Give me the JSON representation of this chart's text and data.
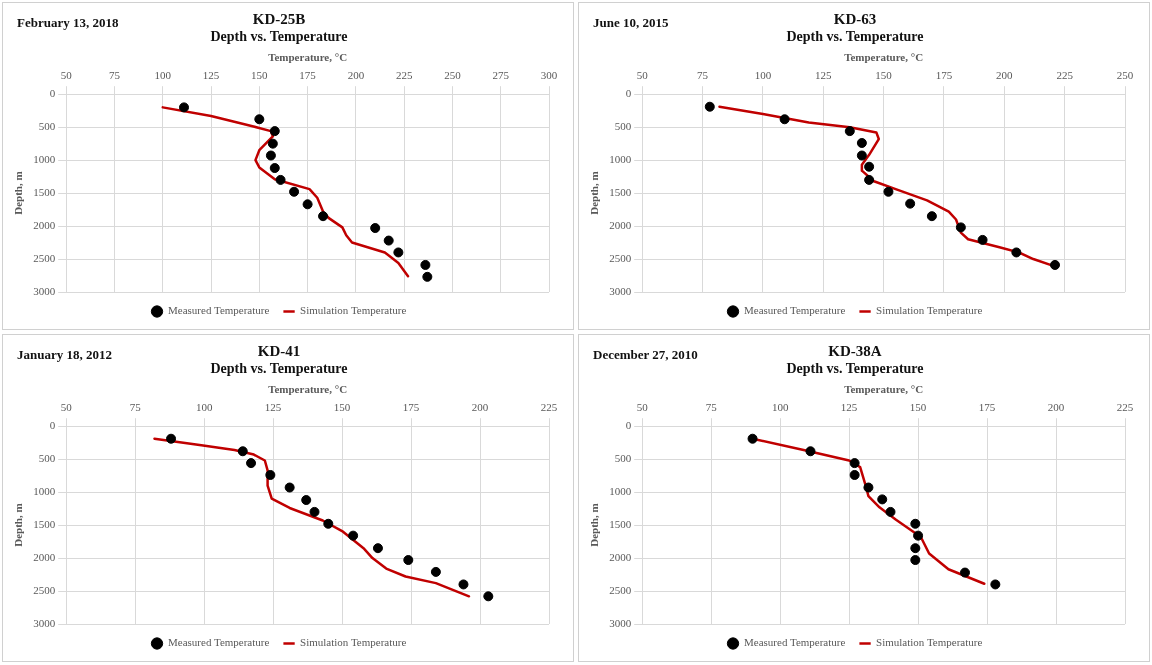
{
  "chart_data": [
    {
      "type": "scatter",
      "title": "KD-25B",
      "subtitle": "Depth vs. Temperature",
      "xlabel": "Temperature, °C",
      "ylabel": "Depth, m",
      "annotations": [
        "February 13, 2018"
      ],
      "xlim": [
        50,
        300
      ],
      "xticks": [
        50,
        75,
        100,
        125,
        150,
        175,
        200,
        225,
        250,
        275,
        300
      ],
      "ylim": [
        3000,
        0
      ],
      "yticks": [
        0,
        500,
        1000,
        1500,
        2000,
        2500,
        3000
      ],
      "grid": true,
      "legend": "bottom",
      "line_style": "solid",
      "series": [
        {
          "name": "Measured Temperature",
          "type": "scatter",
          "marker": "circle",
          "color": "#000000",
          "x": [
            111,
            150,
            158,
            157,
            156,
            158,
            161,
            168,
            175,
            183,
            210,
            217,
            222,
            236,
            237
          ],
          "values": [
            200,
            380,
            560,
            750,
            930,
            1120,
            1300,
            1480,
            1670,
            1850,
            2030,
            2220,
            2400,
            2590,
            2770
          ]
        },
        {
          "name": "Simulation Temperature",
          "type": "line",
          "marker": "none",
          "color": "#c00000",
          "x": [
            100,
            125,
            147,
            156,
            157,
            150,
            148,
            150,
            158,
            176,
            180,
            183,
            186,
            193,
            195,
            198,
            215,
            222,
            227
          ],
          "values": [
            200,
            330,
            490,
            560,
            640,
            850,
            1000,
            1110,
            1290,
            1440,
            1570,
            1780,
            1880,
            2020,
            2140,
            2250,
            2400,
            2560,
            2760
          ]
        }
      ]
    },
    {
      "type": "scatter",
      "title": "KD-63",
      "subtitle": "Depth vs. Temperature",
      "xlabel": "Temperature, °C",
      "ylabel": "Depth, m",
      "annotations": [
        "June 10, 2015"
      ],
      "xlim": [
        50,
        250
      ],
      "xticks": [
        50,
        75,
        100,
        125,
        150,
        175,
        200,
        225,
        250
      ],
      "ylim": [
        3000,
        0
      ],
      "yticks": [
        0,
        500,
        1000,
        1500,
        2000,
        2500,
        3000
      ],
      "grid": true,
      "legend": "bottom",
      "line_style": "solid",
      "series": [
        {
          "name": "Measured Temperature",
          "type": "scatter",
          "marker": "circle",
          "color": "#000000",
          "x": [
            78,
            109,
            136,
            141,
            141,
            144,
            144,
            152,
            161,
            170,
            182,
            191,
            205,
            221
          ],
          "values": [
            190,
            380,
            560,
            740,
            930,
            1100,
            1300,
            1480,
            1660,
            1850,
            2020,
            2210,
            2400,
            2590
          ]
        },
        {
          "name": "Simulation Temperature",
          "type": "line",
          "marker": "none",
          "color": "#c00000",
          "x": [
            82,
            100,
            119,
            136,
            147,
            148,
            144,
            141,
            141,
            146,
            155,
            168,
            177,
            180,
            182,
            185,
            198,
            206,
            212,
            220
          ],
          "values": [
            190,
            300,
            430,
            500,
            580,
            680,
            920,
            1070,
            1160,
            1320,
            1440,
            1610,
            1780,
            1900,
            2100,
            2200,
            2320,
            2400,
            2500,
            2600
          ]
        }
      ]
    },
    {
      "type": "scatter",
      "title": "KD-41",
      "subtitle": "Depth vs. Temperature",
      "xlabel": "Temperature, °C",
      "ylabel": "Depth, m",
      "annotations": [
        "January 18, 2012"
      ],
      "xlim": [
        50,
        225
      ],
      "xticks": [
        50,
        75,
        100,
        125,
        150,
        175,
        200,
        225
      ],
      "ylim": [
        3000,
        0
      ],
      "yticks": [
        0,
        500,
        1000,
        1500,
        2000,
        2500,
        3000
      ],
      "grid": true,
      "legend": "bottom",
      "line_style": "solid",
      "series": [
        {
          "name": "Measured Temperature",
          "type": "scatter",
          "marker": "circle",
          "color": "#000000",
          "x": [
            88,
            114,
            117,
            124,
            131,
            137,
            140,
            145,
            154,
            163,
            174,
            184,
            194,
            203
          ],
          "values": [
            190,
            380,
            560,
            740,
            930,
            1120,
            1300,
            1480,
            1660,
            1850,
            2030,
            2210,
            2400,
            2580
          ]
        },
        {
          "name": "Simulation Temperature",
          "type": "line",
          "marker": "none",
          "color": "#c00000",
          "x": [
            82,
            99,
            111,
            118,
            122,
            123,
            123,
            124.5,
            131,
            143,
            150,
            158,
            161,
            166,
            173,
            184,
            196
          ],
          "values": [
            190,
            290,
            360,
            430,
            520,
            670,
            900,
            1100,
            1240,
            1430,
            1590,
            1860,
            2000,
            2160,
            2280,
            2380,
            2580
          ]
        }
      ]
    },
    {
      "type": "scatter",
      "title": "KD-38A",
      "subtitle": "Depth vs. Temperature",
      "xlabel": "Temperature, °C",
      "ylabel": "Depth, m",
      "annotations": [
        "December 27, 2010"
      ],
      "xlim": [
        50,
        225
      ],
      "xticks": [
        50,
        75,
        100,
        125,
        150,
        175,
        200,
        225
      ],
      "ylim": [
        3000,
        0
      ],
      "yticks": [
        0,
        500,
        1000,
        1500,
        2000,
        2500,
        3000
      ],
      "grid": true,
      "legend": "bottom",
      "line_style": "solid",
      "series": [
        {
          "name": "Measured Temperature",
          "type": "scatter",
          "marker": "circle",
          "color": "#000000",
          "x": [
            90,
            111,
            127,
            127,
            132,
            137,
            140,
            149,
            150,
            149,
            149,
            167,
            178
          ],
          "values": [
            190,
            380,
            560,
            740,
            930,
            1110,
            1300,
            1480,
            1660,
            1850,
            2030,
            2220,
            2400
          ]
        },
        {
          "name": "Simulation Temperature",
          "type": "line",
          "marker": "none",
          "color": "#c00000",
          "x": [
            90,
            108.5,
            125,
            129,
            131,
            132,
            136,
            142,
            151,
            154,
            161,
            174
          ],
          "values": [
            190,
            360,
            520,
            620,
            900,
            1060,
            1230,
            1420,
            1680,
            1930,
            2170,
            2390
          ]
        }
      ]
    }
  ]
}
